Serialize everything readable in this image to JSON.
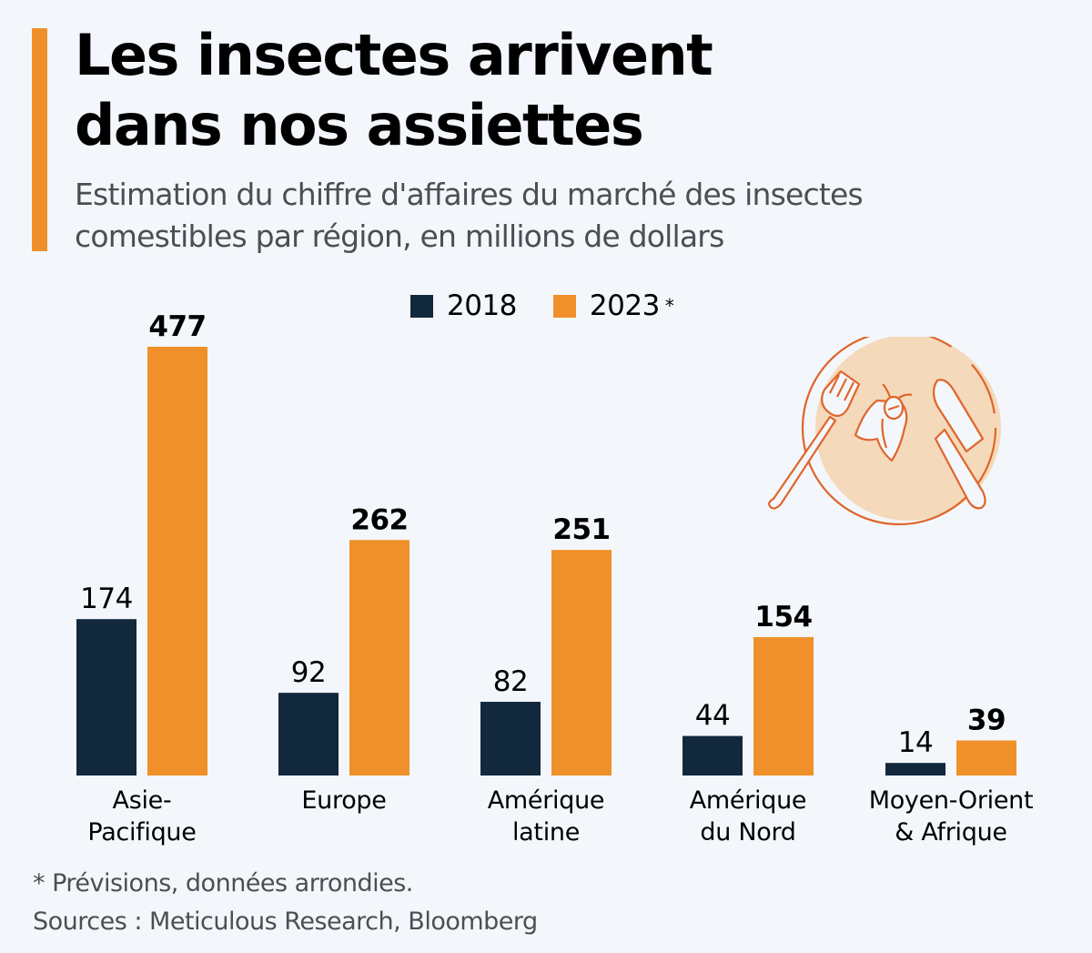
{
  "header": {
    "title_lines": [
      "Les insectes arrivent",
      "dans nos assiettes"
    ],
    "subtitle_lines": [
      "Estimation du chiffre d'affaires du marché des insectes",
      "comestibles par région, en millions de dollars"
    ]
  },
  "legend": {
    "items": [
      {
        "label": "2018",
        "color": "#12283d",
        "note": ""
      },
      {
        "label": "2023",
        "color": "#ef902a",
        "note": "*"
      }
    ]
  },
  "footer": {
    "note": "* Prévisions, données arrondies.",
    "sources": "Sources : Meticulous Research, Bloomberg"
  },
  "illustration": {
    "icon": "plate-with-insect-fork-knife-icon",
    "plate_color": "#f5d9bb",
    "line_color": "#e0652b"
  },
  "colors": {
    "accent": "#ef902a",
    "series_2018": "#12283d",
    "series_2023": "#ef902a",
    "background": "#f3f7fb"
  },
  "chart_data": {
    "type": "bar",
    "title": "Les insectes arrivent dans nos assiettes",
    "subtitle": "Estimation du chiffre d'affaires du marché des insectes comestibles par région, en millions de dollars",
    "xlabel": "",
    "ylabel": "",
    "ylim": [
      0,
      477
    ],
    "grid": false,
    "legend_position": "top-center",
    "categories": [
      [
        "Asie-",
        "Pacifique"
      ],
      [
        "Europe"
      ],
      [
        "Amérique",
        "latine"
      ],
      [
        "Amérique",
        "du Nord"
      ],
      [
        "Moyen-Orient",
        "& Afrique"
      ]
    ],
    "series": [
      {
        "name": "2018",
        "values": [
          174,
          92,
          82,
          44,
          14
        ],
        "color": "#12283d",
        "label_bold": false
      },
      {
        "name": "2023 *",
        "values": [
          477,
          262,
          251,
          154,
          39
        ],
        "color": "#ef902a",
        "label_bold": true
      }
    ]
  }
}
